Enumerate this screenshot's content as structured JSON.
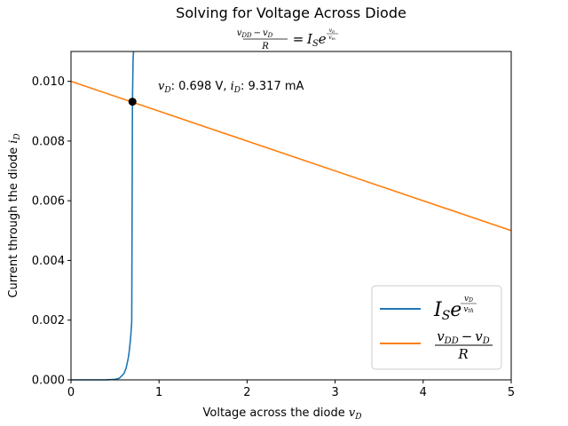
{
  "chart_data": {
    "type": "line",
    "title": "Solving for Voltage Across Diode",
    "subtitle": {
      "num_a": "v",
      "num_a_sub": "DD",
      "minus": "−",
      "num_b": "v",
      "num_b_sub": "D",
      "den": "R",
      "equals": "=",
      "rhs_base": "I",
      "rhs_base_sub": "S",
      "rhs_e": "e",
      "exp_num": "v",
      "exp_num_sub": "D",
      "exp_den": "v",
      "exp_den_sub": "th"
    },
    "xlabel": "Voltage across the diode",
    "xlabel_var": "v",
    "xlabel_sub": "D",
    "ylabel": "Current through the diode",
    "ylabel_var": "i",
    "ylabel_sub": "D",
    "xlim": [
      0,
      5
    ],
    "ylim": [
      0,
      0.011
    ],
    "x_ticks": [
      0,
      1,
      2,
      3,
      4,
      5
    ],
    "x_tick_labels": [
      "0",
      "1",
      "2",
      "3",
      "4",
      "5"
    ],
    "y_ticks": [
      0,
      0.002,
      0.004,
      0.006,
      0.008,
      0.01
    ],
    "y_tick_labels": [
      "0.000",
      "0.002",
      "0.004",
      "0.006",
      "0.008",
      "0.010"
    ],
    "grid": false,
    "legend_position": "lower-right",
    "series": [
      {
        "key": "diode",
        "color": "#1f77b4",
        "x": [
          0,
          0.4,
          0.5,
          0.55,
          0.6,
          0.625,
          0.65,
          0.66,
          0.67,
          0.68,
          0.69,
          0.698,
          0.705,
          0.71
        ],
        "y": [
          0,
          1.2e-06,
          1.58e-05,
          5.66e-05,
          0.000202,
          0.000382,
          0.000721,
          0.000925,
          0.00119,
          0.00152,
          0.00196,
          0.00932,
          0.0107,
          0.011
        ]
      },
      {
        "key": "resistor",
        "color": "#ff7f0e",
        "x": [
          0,
          5
        ],
        "y": [
          0.01,
          0.005
        ]
      }
    ],
    "legend": {
      "diode": {
        "base": "I",
        "base_sub": "S",
        "e": "e",
        "exp_num": "v",
        "exp_num_sub": "D",
        "exp_den": "v",
        "exp_den_sub": "th"
      },
      "resistor": {
        "num_a": "v",
        "num_a_sub": "DD",
        "minus": "−",
        "num_b": "v",
        "num_b_sub": "D",
        "den": "R"
      }
    },
    "intersection": {
      "x": 0.698,
      "y": 0.009317,
      "color": "#000000"
    },
    "annotation": {
      "v_var": "v",
      "v_sub": "D",
      "v_text": ": 0.698 V, ",
      "i_var": "i",
      "i_sub": "D",
      "i_text": ": 9.317 mA"
    }
  }
}
